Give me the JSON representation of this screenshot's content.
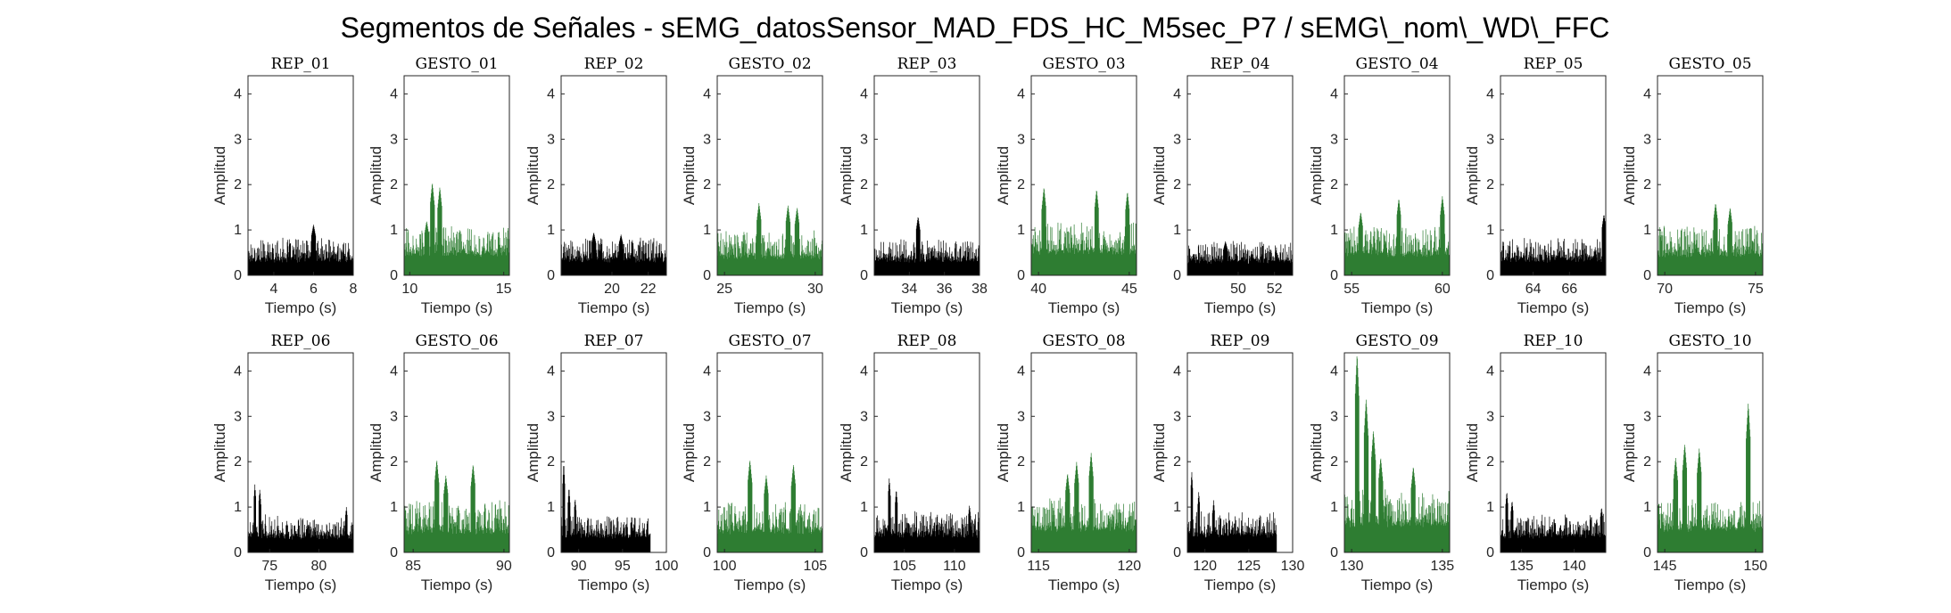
{
  "figure_title": "Segmentos de Señales - sEMG_datosSensor_MAD_FDS_HC_M5sec_P7 / sEMG\\_nom\\_WD\\_FFC",
  "colors": {
    "rep": "#000000",
    "gesto": "#2e7d32"
  },
  "chart_data": [
    {
      "type": "bar",
      "title": "REP_01",
      "xlabel": "Tiempo (s)",
      "ylabel": "Amplitud",
      "kind": "rep",
      "xlim": [
        2.7,
        8.0
      ],
      "ylim": [
        0,
        4.4
      ],
      "xticks": [
        4,
        6,
        8
      ],
      "yticks": [
        0,
        1,
        2,
        3,
        4
      ],
      "data_end": 8.0,
      "baseline": 0.28,
      "spread": 0.45,
      "peaks": [
        [
          6.0,
          1.12
        ]
      ]
    },
    {
      "type": "bar",
      "title": "GESTO_01",
      "xlabel": "Tiempo (s)",
      "ylabel": "Amplitud",
      "kind": "gesto",
      "xlim": [
        9.7,
        15.3
      ],
      "ylim": [
        0,
        4.4
      ],
      "xticks": [
        10,
        15
      ],
      "yticks": [
        0,
        1,
        2,
        3,
        4
      ],
      "data_end": 15.3,
      "baseline": 0.4,
      "spread": 0.6,
      "peaks": [
        [
          11.2,
          2.05
        ],
        [
          11.6,
          1.95
        ],
        [
          10.9,
          1.2
        ]
      ]
    },
    {
      "type": "bar",
      "title": "REP_02",
      "xlabel": "Tiempo (s)",
      "ylabel": "Amplitud",
      "kind": "rep",
      "xlim": [
        17.2,
        23.0
      ],
      "ylim": [
        0,
        4.4
      ],
      "xticks": [
        20,
        22
      ],
      "yticks": [
        0,
        1,
        2,
        3,
        4
      ],
      "data_end": 23.0,
      "baseline": 0.28,
      "spread": 0.45,
      "peaks": [
        [
          19.0,
          0.95
        ],
        [
          20.5,
          0.9
        ]
      ]
    },
    {
      "type": "bar",
      "title": "GESTO_02",
      "xlabel": "Tiempo (s)",
      "ylabel": "Amplitud",
      "kind": "gesto",
      "xlim": [
        24.6,
        30.4
      ],
      "ylim": [
        0,
        4.4
      ],
      "xticks": [
        25,
        30
      ],
      "yticks": [
        0,
        1,
        2,
        3,
        4
      ],
      "data_end": 30.4,
      "baseline": 0.35,
      "spread": 0.55,
      "peaks": [
        [
          28.5,
          1.55
        ],
        [
          29.0,
          1.5
        ],
        [
          26.9,
          1.6
        ]
      ]
    },
    {
      "type": "bar",
      "title": "REP_03",
      "xlabel": "Tiempo (s)",
      "ylabel": "Amplitud",
      "kind": "rep",
      "xlim": [
        32.0,
        38.0
      ],
      "ylim": [
        0,
        4.4
      ],
      "xticks": [
        34,
        36,
        38
      ],
      "yticks": [
        0,
        1,
        2,
        3,
        4
      ],
      "data_end": 38.0,
      "baseline": 0.28,
      "spread": 0.45,
      "peaks": [
        [
          34.5,
          1.3
        ]
      ]
    },
    {
      "type": "bar",
      "title": "GESTO_03",
      "xlabel": "Tiempo (s)",
      "ylabel": "Amplitud",
      "kind": "gesto",
      "xlim": [
        39.6,
        45.4
      ],
      "ylim": [
        0,
        4.4
      ],
      "xticks": [
        40,
        45
      ],
      "yticks": [
        0,
        1,
        2,
        3,
        4
      ],
      "data_end": 45.4,
      "baseline": 0.45,
      "spread": 0.65,
      "peaks": [
        [
          40.3,
          1.95
        ],
        [
          43.2,
          1.9
        ],
        [
          44.9,
          1.85
        ]
      ]
    },
    {
      "type": "bar",
      "title": "REP_04",
      "xlabel": "Tiempo (s)",
      "ylabel": "Amplitud",
      "kind": "rep",
      "xlim": [
        47.2,
        53.0
      ],
      "ylim": [
        0,
        4.4
      ],
      "xticks": [
        50,
        52
      ],
      "yticks": [
        0,
        1,
        2,
        3,
        4
      ],
      "data_end": 53.0,
      "baseline": 0.25,
      "spread": 0.4,
      "peaks": [
        [
          49.3,
          0.75
        ]
      ]
    },
    {
      "type": "bar",
      "title": "GESTO_04",
      "xlabel": "Tiempo (s)",
      "ylabel": "Amplitud",
      "kind": "gesto",
      "xlim": [
        54.6,
        60.4
      ],
      "ylim": [
        0,
        4.4
      ],
      "xticks": [
        55,
        60
      ],
      "yticks": [
        0,
        1,
        2,
        3,
        4
      ],
      "data_end": 60.4,
      "baseline": 0.4,
      "spread": 0.6,
      "peaks": [
        [
          57.6,
          1.7
        ],
        [
          60.0,
          1.75
        ],
        [
          55.5,
          1.4
        ]
      ]
    },
    {
      "type": "bar",
      "title": "REP_05",
      "xlabel": "Tiempo (s)",
      "ylabel": "Amplitud",
      "kind": "rep",
      "xlim": [
        62.2,
        68.0
      ],
      "ylim": [
        0,
        4.4
      ],
      "xticks": [
        64,
        66
      ],
      "yticks": [
        0,
        1,
        2,
        3,
        4
      ],
      "data_end": 68.0,
      "baseline": 0.28,
      "spread": 0.45,
      "peaks": [
        [
          67.9,
          1.35
        ]
      ]
    },
    {
      "type": "bar",
      "title": "GESTO_05",
      "xlabel": "Tiempo (s)",
      "ylabel": "Amplitud",
      "kind": "gesto",
      "xlim": [
        69.6,
        75.4
      ],
      "ylim": [
        0,
        4.4
      ],
      "xticks": [
        70,
        75
      ],
      "yticks": [
        0,
        1,
        2,
        3,
        4
      ],
      "data_end": 75.4,
      "baseline": 0.4,
      "spread": 0.6,
      "peaks": [
        [
          72.8,
          1.6
        ],
        [
          73.6,
          1.5
        ]
      ]
    },
    {
      "type": "bar",
      "title": "REP_06",
      "xlabel": "Tiempo (s)",
      "ylabel": "Amplitud",
      "kind": "rep",
      "xlim": [
        72.8,
        83.5
      ],
      "ylim": [
        0,
        4.4
      ],
      "xticks": [
        75,
        80
      ],
      "yticks": [
        0,
        1,
        2,
        3,
        4
      ],
      "data_end": 83.5,
      "baseline": 0.28,
      "spread": 0.45,
      "peaks": [
        [
          73.5,
          1.5
        ],
        [
          74.0,
          1.4
        ],
        [
          82.8,
          1.0
        ]
      ]
    },
    {
      "type": "bar",
      "title": "GESTO_06",
      "xlabel": "Tiempo (s)",
      "ylabel": "Amplitud",
      "kind": "gesto",
      "xlim": [
        84.5,
        90.3
      ],
      "ylim": [
        0,
        4.4
      ],
      "xticks": [
        85,
        90
      ],
      "yticks": [
        0,
        1,
        2,
        3,
        4
      ],
      "data_end": 90.3,
      "baseline": 0.4,
      "spread": 0.65,
      "peaks": [
        [
          86.3,
          2.05
        ],
        [
          88.3,
          1.95
        ],
        [
          86.8,
          1.7
        ]
      ]
    },
    {
      "type": "bar",
      "title": "REP_07",
      "xlabel": "Tiempo (s)",
      "ylabel": "Amplitud",
      "kind": "rep",
      "xlim": [
        88.0,
        100.0
      ],
      "ylim": [
        0,
        4.4
      ],
      "xticks": [
        90,
        95,
        100
      ],
      "yticks": [
        0,
        1,
        2,
        3,
        4
      ],
      "data_end": 98.2,
      "baseline": 0.3,
      "spread": 0.45,
      "peaks": [
        [
          88.3,
          2.0
        ],
        [
          88.9,
          1.45
        ],
        [
          89.6,
          1.2
        ]
      ]
    },
    {
      "type": "bar",
      "title": "GESTO_07",
      "xlabel": "Tiempo (s)",
      "ylabel": "Amplitud",
      "kind": "gesto",
      "xlim": [
        99.6,
        105.4
      ],
      "ylim": [
        0,
        4.4
      ],
      "xticks": [
        100,
        105
      ],
      "yticks": [
        0,
        1,
        2,
        3,
        4
      ],
      "data_end": 105.4,
      "baseline": 0.4,
      "spread": 0.65,
      "peaks": [
        [
          101.4,
          2.05
        ],
        [
          103.8,
          1.95
        ],
        [
          102.3,
          1.7
        ]
      ]
    },
    {
      "type": "bar",
      "title": "REP_08",
      "xlabel": "Tiempo (s)",
      "ylabel": "Amplitud",
      "kind": "rep",
      "xlim": [
        102.0,
        112.5
      ],
      "ylim": [
        0,
        4.4
      ],
      "xticks": [
        105,
        110
      ],
      "yticks": [
        0,
        1,
        2,
        3,
        4
      ],
      "data_end": 112.5,
      "baseline": 0.32,
      "spread": 0.5,
      "peaks": [
        [
          103.5,
          1.65
        ],
        [
          104.2,
          1.4
        ],
        [
          111.5,
          1.05
        ]
      ]
    },
    {
      "type": "bar",
      "title": "GESTO_08",
      "xlabel": "Tiempo (s)",
      "ylabel": "Amplitud",
      "kind": "gesto",
      "xlim": [
        114.6,
        120.4
      ],
      "ylim": [
        0,
        4.4
      ],
      "xticks": [
        115,
        120
      ],
      "yticks": [
        0,
        1,
        2,
        3,
        4
      ],
      "data_end": 120.4,
      "baseline": 0.45,
      "spread": 0.65,
      "peaks": [
        [
          117.9,
          2.2
        ],
        [
          117.1,
          2.0
        ],
        [
          116.6,
          1.75
        ]
      ]
    },
    {
      "type": "bar",
      "title": "REP_09",
      "xlabel": "Tiempo (s)",
      "ylabel": "Amplitud",
      "kind": "rep",
      "xlim": [
        118.0,
        130.0
      ],
      "ylim": [
        0,
        4.4
      ],
      "xticks": [
        120,
        125,
        130
      ],
      "yticks": [
        0,
        1,
        2,
        3,
        4
      ],
      "data_end": 128.2,
      "baseline": 0.32,
      "spread": 0.5,
      "peaks": [
        [
          118.5,
          1.8
        ],
        [
          119.3,
          1.35
        ],
        [
          121.0,
          1.15
        ]
      ]
    },
    {
      "type": "bar",
      "title": "GESTO_09",
      "xlabel": "Tiempo (s)",
      "ylabel": "Amplitud",
      "kind": "gesto",
      "xlim": [
        129.6,
        135.4
      ],
      "ylim": [
        0,
        4.4
      ],
      "xticks": [
        130,
        135
      ],
      "yticks": [
        0,
        1,
        2,
        3,
        4
      ],
      "data_end": 135.4,
      "baseline": 0.55,
      "spread": 0.75,
      "peaks": [
        [
          130.3,
          4.4
        ],
        [
          130.8,
          3.4
        ],
        [
          131.2,
          2.7
        ],
        [
          131.6,
          2.1
        ],
        [
          133.4,
          1.9
        ]
      ]
    },
    {
      "type": "bar",
      "title": "REP_10",
      "xlabel": "Tiempo (s)",
      "ylabel": "Amplitud",
      "kind": "rep",
      "xlim": [
        133.0,
        143.0
      ],
      "ylim": [
        0,
        4.4
      ],
      "xticks": [
        135,
        140
      ],
      "yticks": [
        0,
        1,
        2,
        3,
        4
      ],
      "data_end": 143.0,
      "baseline": 0.3,
      "spread": 0.45,
      "peaks": [
        [
          133.6,
          1.35
        ],
        [
          134.1,
          1.15
        ],
        [
          142.6,
          1.0
        ]
      ]
    },
    {
      "type": "bar",
      "title": "GESTO_10",
      "xlabel": "Tiempo (s)",
      "ylabel": "Amplitud",
      "kind": "gesto",
      "xlim": [
        144.6,
        150.4
      ],
      "ylim": [
        0,
        4.4
      ],
      "xticks": [
        145,
        150
      ],
      "yticks": [
        0,
        1,
        2,
        3,
        4
      ],
      "data_end": 150.4,
      "baseline": 0.45,
      "spread": 0.65,
      "peaks": [
        [
          149.6,
          3.3
        ],
        [
          146.1,
          2.4
        ],
        [
          146.9,
          2.3
        ],
        [
          145.6,
          2.1
        ]
      ]
    }
  ]
}
